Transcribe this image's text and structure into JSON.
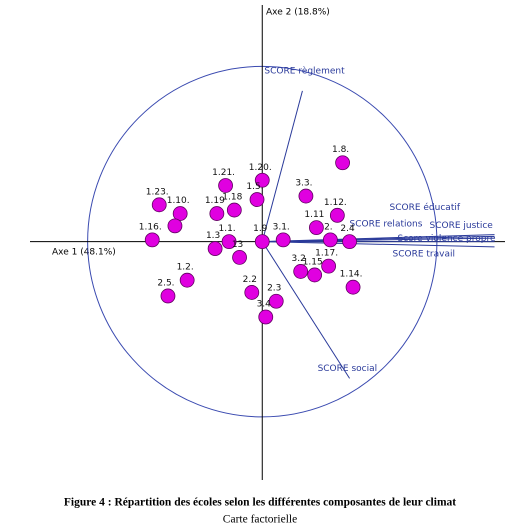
{
  "chart_data": {
    "type": "scatter",
    "xlabel": "Axe 1 (48.1%)",
    "ylabel": "Axe 2 (18.8%)",
    "xlim": [
      -1.33,
      1.39
    ],
    "ylim": [
      -1.36,
      1.35
    ],
    "unit_circle": true,
    "circle_color": "#3a4ab0",
    "points": {
      "color": "#e000e0",
      "labels": [
        "1.8.",
        "3.3.",
        "1.20.",
        "1.21.",
        "1.5.",
        "1.23.",
        "1.10.",
        "1.19",
        "1.18",
        "1.16.",
        null,
        "1.12.",
        "1.11",
        "2.",
        "2.4",
        "1.3",
        "1.1.",
        "1.9",
        "3.1.",
        "13",
        "3.2",
        "1.15",
        "1.17.",
        "1.14.",
        "1.2.",
        "2.5.",
        "2.2",
        "2.3",
        "3.4"
      ],
      "x": [
        0.46,
        0.25,
        0,
        -0.21,
        -0.03,
        -0.59,
        -0.47,
        -0.26,
        -0.16,
        -0.63,
        -0.5,
        0.43,
        0.31,
        0.39,
        0.5,
        -0.27,
        -0.19,
        0,
        0.12,
        -0.13,
        0.22,
        0.3,
        0.38,
        0.52,
        -0.43,
        -0.54,
        -0.06,
        0.08,
        0.02
      ],
      "y": [
        0.45,
        0.26,
        0.35,
        0.32,
        0.24,
        0.21,
        0.16,
        0.16,
        0.18,
        0.01,
        0.09,
        0.15,
        0.08,
        0.01,
        0,
        -0.04,
        0,
        0,
        0.01,
        -0.09,
        -0.17,
        -0.19,
        -0.14,
        -0.26,
        -0.22,
        -0.31,
        -0.29,
        -0.34,
        -0.43
      ]
    },
    "vectors": {
      "color": "#2a3a9a",
      "labels": [
        "SCORE règlement",
        "SCORE éducatif",
        "SCORE relations",
        "SCORE justice",
        "Score violence propre",
        "SCORE travail",
        "SCORE social"
      ],
      "x": [
        0.23,
        1.33,
        1.33,
        1.33,
        1.33,
        1.33,
        0.5
      ],
      "y": [
        0.86,
        0.04,
        0.02,
        0.03,
        0,
        -0.03,
        -0.78
      ]
    }
  },
  "caption": {
    "title": "Figure 4 : Répartition des écoles selon les différentes composantes de leur climat",
    "subtitle": "Carte factorielle"
  }
}
